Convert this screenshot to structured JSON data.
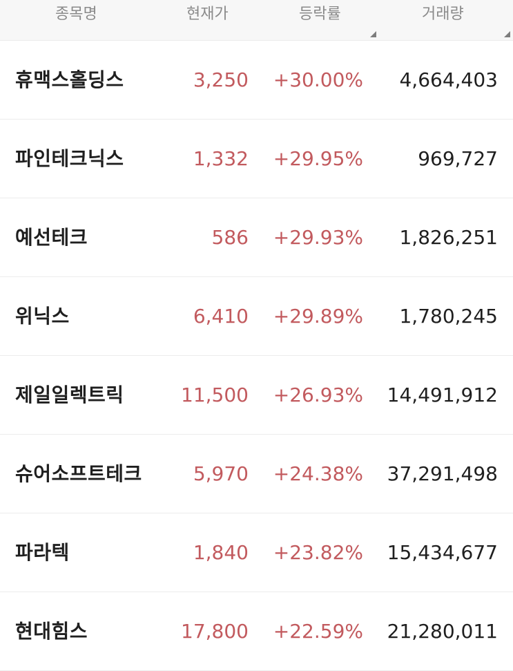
{
  "header": {
    "name_label": "종목명",
    "price_label": "현재가",
    "change_label": "등락률",
    "volume_label": "거래량"
  },
  "colors": {
    "up": "#c25a5e",
    "text": "#1f1f1f",
    "header_text": "#8a8a8a",
    "header_bg": "#f7f7f7"
  },
  "rows": [
    {
      "name": "휴맥스홀딩스",
      "price": "3,250",
      "change": "+30.00%",
      "volume": "4,664,403"
    },
    {
      "name": "파인테크닉스",
      "price": "1,332",
      "change": "+29.95%",
      "volume": "969,727"
    },
    {
      "name": "예선테크",
      "price": "586",
      "change": "+29.93%",
      "volume": "1,826,251"
    },
    {
      "name": "위닉스",
      "price": "6,410",
      "change": "+29.89%",
      "volume": "1,780,245"
    },
    {
      "name": "제일일렉트릭",
      "price": "11,500",
      "change": "+26.93%",
      "volume": "14,491,912"
    },
    {
      "name": "슈어소프트테크",
      "price": "5,970",
      "change": "+24.38%",
      "volume": "37,291,498"
    },
    {
      "name": "파라텍",
      "price": "1,840",
      "change": "+23.82%",
      "volume": "15,434,677"
    },
    {
      "name": "현대힘스",
      "price": "17,800",
      "change": "+22.59%",
      "volume": "21,280,011"
    }
  ]
}
